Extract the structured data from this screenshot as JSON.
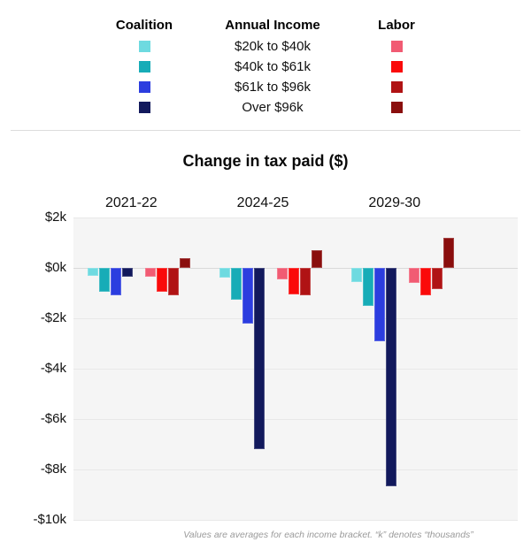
{
  "legend": {
    "coalition_header": "Coalition",
    "income_header": "Annual Income",
    "labor_header": "Labor",
    "brackets": [
      "$20k to $40k",
      "$40k to $61k",
      "$61k to $96k",
      "Over $96k"
    ],
    "coalition_colors": [
      "#6EDAE0",
      "#17ACB7",
      "#2C3DDF",
      "#12195C"
    ],
    "labor_colors": [
      "#F15B73",
      "#FA0A0A",
      "#B01314",
      "#8A0E0D"
    ]
  },
  "chart_data": {
    "type": "bar",
    "title": "Change in tax paid ($)",
    "categories": [
      "2021-22",
      "2024-25",
      "2029-30"
    ],
    "series": [
      {
        "name": "Coalition $20k to $40k",
        "party": "Coalition",
        "bracket": "$20k to $40k",
        "color": "#6EDAE0",
        "values": [
          -300,
          -400,
          -550
        ]
      },
      {
        "name": "Coalition $40k to $61k",
        "party": "Coalition",
        "bracket": "$40k to $61k",
        "color": "#17ACB7",
        "values": [
          -950,
          -1250,
          -1500
        ]
      },
      {
        "name": "Coalition $61k to $96k",
        "party": "Coalition",
        "bracket": "$61k to $96k",
        "color": "#2C3DDF",
        "values": [
          -1100,
          -2200,
          -2900
        ]
      },
      {
        "name": "Coalition Over $96k",
        "party": "Coalition",
        "bracket": "Over $96k",
        "color": "#12195C",
        "values": [
          -350,
          -7200,
          -8650
        ]
      },
      {
        "name": "Labor $20k to $40k",
        "party": "Labor",
        "bracket": "$20k to $40k",
        "color": "#F15B73",
        "values": [
          -350,
          -450,
          -600
        ]
      },
      {
        "name": "Labor $40k to $61k",
        "party": "Labor",
        "bracket": "$40k to $61k",
        "color": "#FA0A0A",
        "values": [
          -950,
          -1050,
          -1100
        ]
      },
      {
        "name": "Labor $61k to $96k",
        "party": "Labor",
        "bracket": "$61k to $96k",
        "color": "#B01314",
        "values": [
          -1100,
          -1100,
          -850
        ]
      },
      {
        "name": "Labor Over $96k",
        "party": "Labor",
        "bracket": "Over $96k",
        "color": "#8A0E0D",
        "values": [
          400,
          700,
          1200
        ]
      }
    ],
    "ylabel": "",
    "y_ticks": [
      "$2k",
      "$0k",
      "-$2k",
      "-$4k",
      "-$6k",
      "-$8k",
      "-$10k"
    ],
    "y_tick_values": [
      2000,
      0,
      -2000,
      -4000,
      -6000,
      -8000,
      -10000
    ],
    "ylim": [
      -10000,
      2000
    ],
    "grid": true,
    "legend_position": "top"
  },
  "footnote": "Values are averages for each income bracket. “k” denotes “thousands”"
}
